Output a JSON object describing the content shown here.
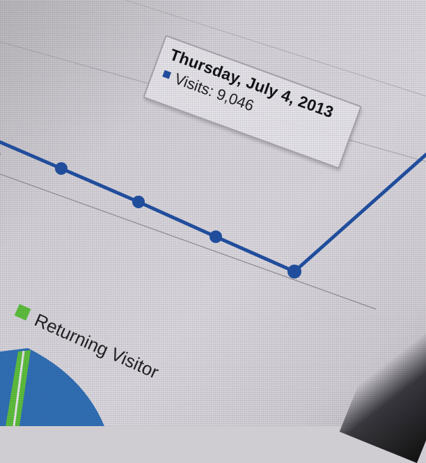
{
  "tooltip": {
    "date": "Thursday, July 4, 2013",
    "series_label": "Visits: 9,046",
    "swatch_color": "#1f4fa0"
  },
  "legend": {
    "items": [
      {
        "label": "Returning Visitor",
        "color": "#5cbf3a"
      }
    ],
    "cut_text": "r"
  },
  "axis": {
    "cut_label": "9"
  },
  "colors": {
    "line": "#1f4fa0",
    "pie_new": "#2f6fb5",
    "pie_returning": "#5cbf3a"
  }
}
